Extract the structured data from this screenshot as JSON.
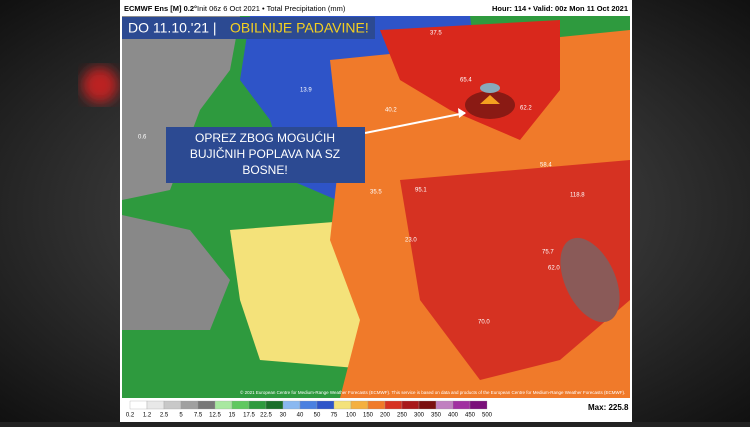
{
  "header": {
    "model": "ECMWF Ens [M] 0.2°",
    "init": "Init 06z 6 Oct 2021 • Total Precipitation (mm)",
    "valid": "Hour: 114 • Valid: 00z Mon 11 Oct 2021"
  },
  "banner": {
    "date": "DO 11.10.'21 |",
    "title": "OBILNIJE PADAVINE!"
  },
  "callout": "OPREZ ZBOG MOGUĆIH BUJIČNIH POPLAVA NA SZ BOSNE!",
  "map_labels": [
    "37.5",
    "65.4",
    "62.2",
    "58.4",
    "95.1",
    "118.8",
    "62.0",
    "75.7",
    "70.0",
    "35.5",
    "13.9",
    "0.6",
    "23.0",
    "40.2"
  ],
  "footer": "© 2021 European Centre for Medium-Range Weather Forecasts (ECMWF). This service is based on data and products of the European Centre for Medium-Range Weather Forecasts (ECMWF).",
  "legend": {
    "labels": [
      "0.2",
      "1.2",
      "2.5",
      "5",
      "7.5",
      "12.5",
      "15",
      "17.5",
      "22.5",
      "30",
      "40",
      "50",
      "75",
      "100",
      "150",
      "200",
      "250",
      "300",
      "350",
      "400",
      "450",
      "500"
    ],
    "max": "Max: 225.8"
  }
}
